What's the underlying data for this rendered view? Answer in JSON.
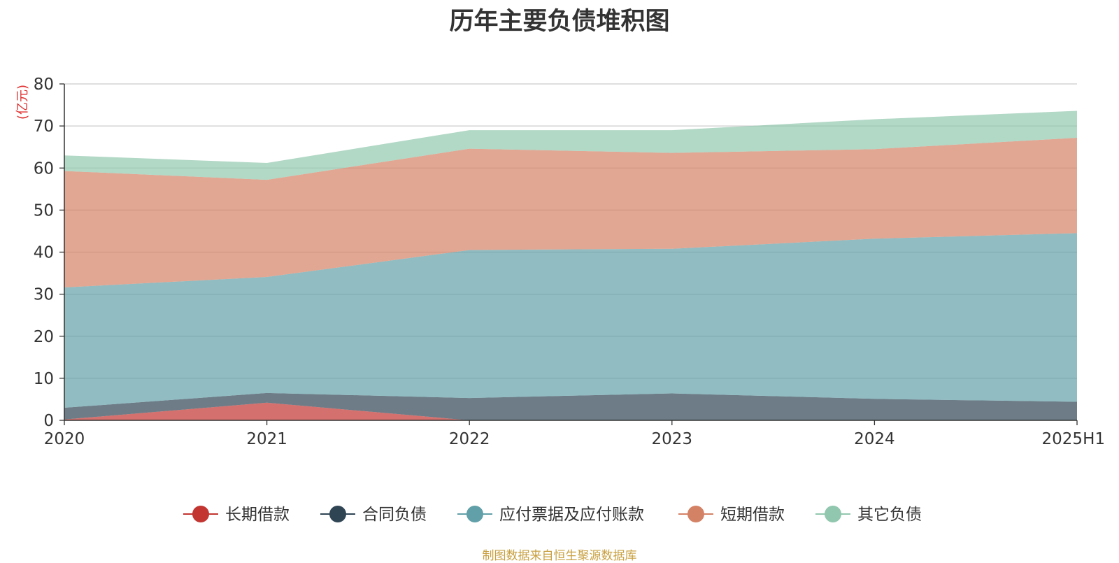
{
  "chart_data": {
    "type": "area",
    "stacked": true,
    "title": "历年主要负债堆积图",
    "ylabel": "(亿元)",
    "xlabel": "",
    "x": [
      "2020",
      "2021",
      "2022",
      "2023",
      "2024",
      "2025H1"
    ],
    "ylim": [
      0,
      80
    ],
    "yticks": [
      0,
      10,
      20,
      30,
      40,
      50,
      60,
      70,
      80
    ],
    "grid": true,
    "legend_position": "bottom",
    "series": [
      {
        "name": "长期借款",
        "color": "#c23531",
        "values": [
          0.2,
          4.2,
          0,
          0,
          0,
          0
        ]
      },
      {
        "name": "合同负债",
        "color": "#2f4554",
        "values": [
          2.8,
          2.3,
          5.3,
          6.4,
          5.1,
          4.4
        ]
      },
      {
        "name": "应付票据及应付账款",
        "color": "#61a0a8",
        "values": [
          28.6,
          27.6,
          35.2,
          34.4,
          38.1,
          40.1
        ]
      },
      {
        "name": "短期借款",
        "color": "#d48265",
        "values": [
          27.7,
          23.1,
          24.1,
          22.8,
          21.3,
          22.7
        ]
      },
      {
        "name": "其它负债",
        "color": "#91c7ae",
        "values": [
          3.7,
          4.0,
          4.4,
          5.4,
          7.1,
          6.4
        ]
      }
    ]
  },
  "source_note": "制图数据来自恒生聚源数据库"
}
